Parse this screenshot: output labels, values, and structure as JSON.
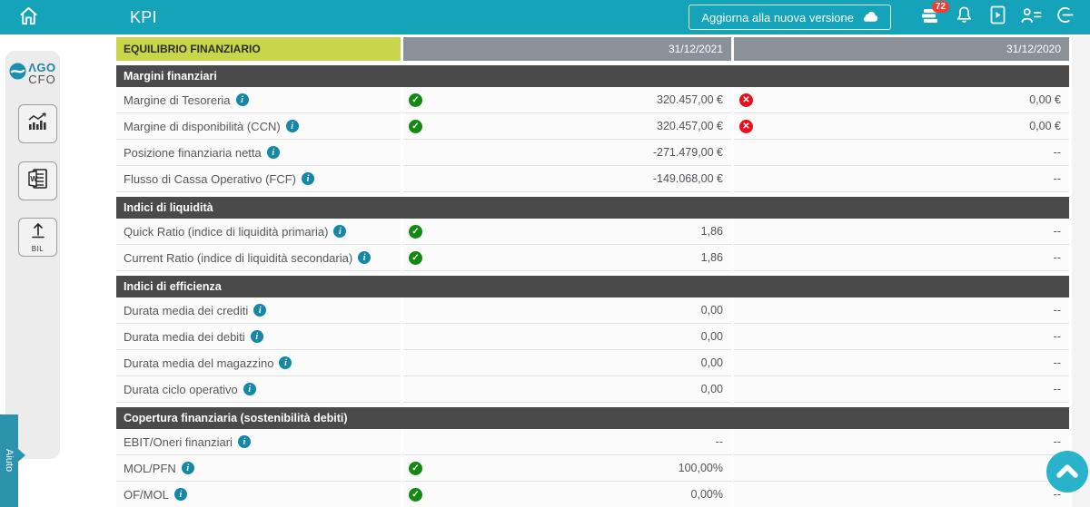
{
  "topbar": {
    "title": "KPI",
    "update_button_label": "Aggiorna alla nuova versione",
    "notification_count": "72",
    "icons": [
      "home-icon",
      "ledger-stack-icon",
      "bell-icon",
      "document-report-icon",
      "user-list-icon",
      "logout-icon"
    ]
  },
  "sidebar": {
    "logo_line1": "ΛGO",
    "logo_line2": "CFO",
    "buttons": [
      "kpi-chart-button",
      "word-report-button",
      "upload-balance-button"
    ],
    "upload_label": "BIL",
    "help_tab_label": "Aiuto"
  },
  "table": {
    "header": {
      "title": "EQUILIBRIO FINANZIARIO",
      "col_2021": "31/12/2021",
      "col_2020": "31/12/2020"
    },
    "sections": [
      {
        "title": "Margini finanziari",
        "rows": [
          {
            "label": "Margine di Tesoreria",
            "info": true,
            "s1": "ok",
            "v1": "320.457,00 €",
            "s2": "bad",
            "v2": "0,00 €"
          },
          {
            "label": "Margine di disponibilità (CCN)",
            "info": true,
            "s1": "ok",
            "v1": "320.457,00 €",
            "s2": "bad",
            "v2": "0,00 €"
          },
          {
            "label": "Posizione finanziaria netta",
            "info": true,
            "s1": "none",
            "v1": "-271.479,00 €",
            "s2": "none",
            "v2": "--"
          },
          {
            "label": "Flusso di Cassa Operativo (FCF)",
            "info": true,
            "s1": "none",
            "v1": "-149.068,00 €",
            "s2": "none",
            "v2": "--"
          }
        ]
      },
      {
        "title": "Indici di liquidità",
        "rows": [
          {
            "label": "Quick Ratio (indice di liquidità primaria)",
            "info": true,
            "s1": "ok",
            "v1": "1,86",
            "s2": "none",
            "v2": "--"
          },
          {
            "label": "Current Ratio (indice di liquidità secondaria)",
            "info": true,
            "s1": "ok",
            "v1": "1,86",
            "s2": "none",
            "v2": "--"
          }
        ]
      },
      {
        "title": "Indici di efficienza",
        "rows": [
          {
            "label": "Durata media dei crediti",
            "info": true,
            "s1": "none",
            "v1": "0,00",
            "s2": "none",
            "v2": "--"
          },
          {
            "label": "Durata media dei debiti",
            "info": true,
            "s1": "none",
            "v1": "0,00",
            "s2": "none",
            "v2": "--"
          },
          {
            "label": "Durata media del magazzino",
            "info": true,
            "s1": "none",
            "v1": "0,00",
            "s2": "none",
            "v2": "--"
          },
          {
            "label": "Durata ciclo operativo",
            "info": true,
            "s1": "none",
            "v1": "0,00",
            "s2": "none",
            "v2": "--"
          }
        ]
      },
      {
        "title": "Copertura finanziaria (sostenibilità debiti)",
        "rows": [
          {
            "label": "EBIT/Oneri finanziari",
            "info": true,
            "s1": "none",
            "v1": "--",
            "s2": "none",
            "v2": "--"
          },
          {
            "label": "MOL/PFN",
            "info": true,
            "s1": "ok",
            "v1": "100,00%",
            "s2": "none",
            "v2": "--"
          },
          {
            "label": "OF/MOL",
            "info": true,
            "s1": "ok",
            "v1": "0,00%",
            "s2": "none",
            "v2": "--"
          }
        ]
      }
    ]
  },
  "colors": {
    "topbar_teal": "#14a3b9",
    "header_yellow": "#c9d64b",
    "header_gray": "#8b9198",
    "section_dark": "#4a4a4b",
    "ok_green": "#128a12",
    "error_red": "#e8101c",
    "info_blue": "#1587a9",
    "help_tab_teal": "#2d93ac",
    "scroll_button_teal": "#29b3ca",
    "badge_red": "#ef3e36"
  }
}
